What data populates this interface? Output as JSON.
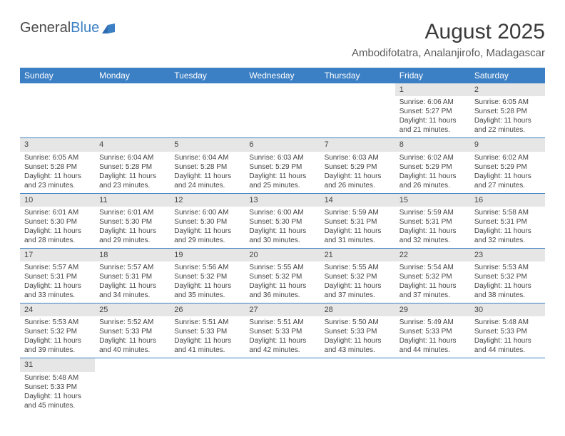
{
  "brand": {
    "name_a": "General",
    "name_b": "Blue"
  },
  "title": "August 2025",
  "location": "Ambodifotatra, Analanjirofo, Madagascar",
  "colors": {
    "header_bg": "#3b7fc4",
    "header_fg": "#ffffff",
    "daynum_bg": "#e6e6e6",
    "rule": "#3b7fc4",
    "text": "#444444",
    "title": "#3a3a3a"
  },
  "typography": {
    "body_pt": 10,
    "title_pt": 30,
    "location_pt": 15,
    "th_pt": 12
  },
  "weekdays": [
    "Sunday",
    "Monday",
    "Tuesday",
    "Wednesday",
    "Thursday",
    "Friday",
    "Saturday"
  ],
  "weeks": [
    [
      {
        "empty": true
      },
      {
        "empty": true
      },
      {
        "empty": true
      },
      {
        "empty": true
      },
      {
        "empty": true
      },
      {
        "n": "1",
        "sunrise": "Sunrise: 6:06 AM",
        "sunset": "Sunset: 5:27 PM",
        "day": "Daylight: 11 hours and 21 minutes."
      },
      {
        "n": "2",
        "sunrise": "Sunrise: 6:05 AM",
        "sunset": "Sunset: 5:28 PM",
        "day": "Daylight: 11 hours and 22 minutes."
      }
    ],
    [
      {
        "n": "3",
        "sunrise": "Sunrise: 6:05 AM",
        "sunset": "Sunset: 5:28 PM",
        "day": "Daylight: 11 hours and 23 minutes."
      },
      {
        "n": "4",
        "sunrise": "Sunrise: 6:04 AM",
        "sunset": "Sunset: 5:28 PM",
        "day": "Daylight: 11 hours and 23 minutes."
      },
      {
        "n": "5",
        "sunrise": "Sunrise: 6:04 AM",
        "sunset": "Sunset: 5:28 PM",
        "day": "Daylight: 11 hours and 24 minutes."
      },
      {
        "n": "6",
        "sunrise": "Sunrise: 6:03 AM",
        "sunset": "Sunset: 5:29 PM",
        "day": "Daylight: 11 hours and 25 minutes."
      },
      {
        "n": "7",
        "sunrise": "Sunrise: 6:03 AM",
        "sunset": "Sunset: 5:29 PM",
        "day": "Daylight: 11 hours and 26 minutes."
      },
      {
        "n": "8",
        "sunrise": "Sunrise: 6:02 AM",
        "sunset": "Sunset: 5:29 PM",
        "day": "Daylight: 11 hours and 26 minutes."
      },
      {
        "n": "9",
        "sunrise": "Sunrise: 6:02 AM",
        "sunset": "Sunset: 5:29 PM",
        "day": "Daylight: 11 hours and 27 minutes."
      }
    ],
    [
      {
        "n": "10",
        "sunrise": "Sunrise: 6:01 AM",
        "sunset": "Sunset: 5:30 PM",
        "day": "Daylight: 11 hours and 28 minutes."
      },
      {
        "n": "11",
        "sunrise": "Sunrise: 6:01 AM",
        "sunset": "Sunset: 5:30 PM",
        "day": "Daylight: 11 hours and 29 minutes."
      },
      {
        "n": "12",
        "sunrise": "Sunrise: 6:00 AM",
        "sunset": "Sunset: 5:30 PM",
        "day": "Daylight: 11 hours and 29 minutes."
      },
      {
        "n": "13",
        "sunrise": "Sunrise: 6:00 AM",
        "sunset": "Sunset: 5:30 PM",
        "day": "Daylight: 11 hours and 30 minutes."
      },
      {
        "n": "14",
        "sunrise": "Sunrise: 5:59 AM",
        "sunset": "Sunset: 5:31 PM",
        "day": "Daylight: 11 hours and 31 minutes."
      },
      {
        "n": "15",
        "sunrise": "Sunrise: 5:59 AM",
        "sunset": "Sunset: 5:31 PM",
        "day": "Daylight: 11 hours and 32 minutes."
      },
      {
        "n": "16",
        "sunrise": "Sunrise: 5:58 AM",
        "sunset": "Sunset: 5:31 PM",
        "day": "Daylight: 11 hours and 32 minutes."
      }
    ],
    [
      {
        "n": "17",
        "sunrise": "Sunrise: 5:57 AM",
        "sunset": "Sunset: 5:31 PM",
        "day": "Daylight: 11 hours and 33 minutes."
      },
      {
        "n": "18",
        "sunrise": "Sunrise: 5:57 AM",
        "sunset": "Sunset: 5:31 PM",
        "day": "Daylight: 11 hours and 34 minutes."
      },
      {
        "n": "19",
        "sunrise": "Sunrise: 5:56 AM",
        "sunset": "Sunset: 5:32 PM",
        "day": "Daylight: 11 hours and 35 minutes."
      },
      {
        "n": "20",
        "sunrise": "Sunrise: 5:55 AM",
        "sunset": "Sunset: 5:32 PM",
        "day": "Daylight: 11 hours and 36 minutes."
      },
      {
        "n": "21",
        "sunrise": "Sunrise: 5:55 AM",
        "sunset": "Sunset: 5:32 PM",
        "day": "Daylight: 11 hours and 37 minutes."
      },
      {
        "n": "22",
        "sunrise": "Sunrise: 5:54 AM",
        "sunset": "Sunset: 5:32 PM",
        "day": "Daylight: 11 hours and 37 minutes."
      },
      {
        "n": "23",
        "sunrise": "Sunrise: 5:53 AM",
        "sunset": "Sunset: 5:32 PM",
        "day": "Daylight: 11 hours and 38 minutes."
      }
    ],
    [
      {
        "n": "24",
        "sunrise": "Sunrise: 5:53 AM",
        "sunset": "Sunset: 5:32 PM",
        "day": "Daylight: 11 hours and 39 minutes."
      },
      {
        "n": "25",
        "sunrise": "Sunrise: 5:52 AM",
        "sunset": "Sunset: 5:33 PM",
        "day": "Daylight: 11 hours and 40 minutes."
      },
      {
        "n": "26",
        "sunrise": "Sunrise: 5:51 AM",
        "sunset": "Sunset: 5:33 PM",
        "day": "Daylight: 11 hours and 41 minutes."
      },
      {
        "n": "27",
        "sunrise": "Sunrise: 5:51 AM",
        "sunset": "Sunset: 5:33 PM",
        "day": "Daylight: 11 hours and 42 minutes."
      },
      {
        "n": "28",
        "sunrise": "Sunrise: 5:50 AM",
        "sunset": "Sunset: 5:33 PM",
        "day": "Daylight: 11 hours and 43 minutes."
      },
      {
        "n": "29",
        "sunrise": "Sunrise: 5:49 AM",
        "sunset": "Sunset: 5:33 PM",
        "day": "Daylight: 11 hours and 44 minutes."
      },
      {
        "n": "30",
        "sunrise": "Sunrise: 5:48 AM",
        "sunset": "Sunset: 5:33 PM",
        "day": "Daylight: 11 hours and 44 minutes."
      }
    ],
    [
      {
        "n": "31",
        "sunrise": "Sunrise: 5:48 AM",
        "sunset": "Sunset: 5:33 PM",
        "day": "Daylight: 11 hours and 45 minutes."
      },
      {
        "empty": true
      },
      {
        "empty": true
      },
      {
        "empty": true
      },
      {
        "empty": true
      },
      {
        "empty": true
      },
      {
        "empty": true
      }
    ]
  ]
}
